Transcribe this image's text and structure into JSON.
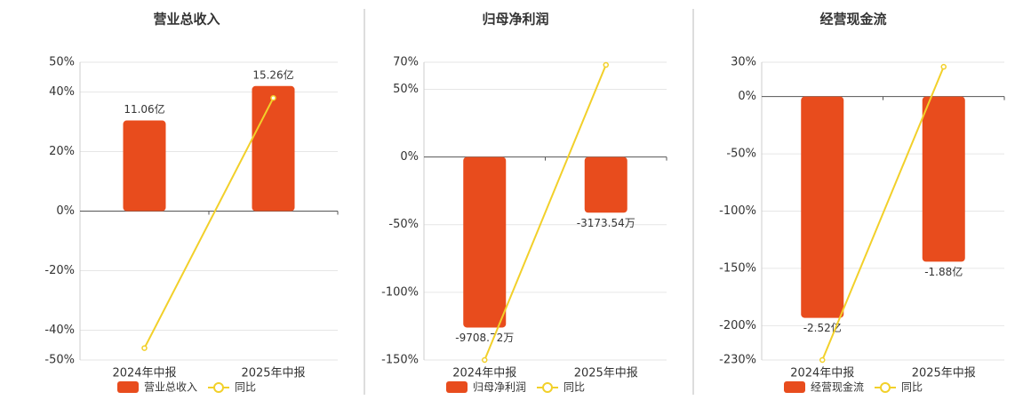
{
  "chart_data": [
    {
      "type": "bar",
      "title": "营业总收入",
      "categories": [
        "2024年中报",
        "2025年中报"
      ],
      "series": [
        {
          "name": "营业总收入",
          "type": "bar",
          "color": "#e84c1d",
          "values": [
            11.06,
            15.26
          ],
          "value_labels": [
            "11.06亿",
            "15.26亿"
          ]
        },
        {
          "name": "同比",
          "type": "line",
          "color": "#f2d02a",
          "values": [
            -46,
            38
          ]
        }
      ],
      "ylim": [
        -50,
        50
      ],
      "yticks": [
        {
          "value": 50,
          "label": "50%"
        },
        {
          "value": 40,
          "label": "40%"
        },
        {
          "value": 20,
          "label": "20%"
        },
        {
          "value": 0,
          "label": "0%"
        },
        {
          "value": -20,
          "label": "-20%"
        },
        {
          "value": -40,
          "label": "-40%"
        },
        {
          "value": -50,
          "label": "-50%"
        }
      ],
      "grid": true
    },
    {
      "type": "bar",
      "title": "归母净利润",
      "categories": [
        "2024年中报",
        "2025年中报"
      ],
      "series": [
        {
          "name": "归母净利润",
          "type": "bar",
          "color": "#e84c1d",
          "values": [
            -9708.72,
            -3173.54
          ],
          "value_labels": [
            "-9708.72万",
            "-3173.54万"
          ]
        },
        {
          "name": "同比",
          "type": "line",
          "color": "#f2d02a",
          "values": [
            -150,
            68
          ]
        }
      ],
      "ylim": [
        -150,
        70
      ],
      "yticks": [
        {
          "value": 70,
          "label": "70%"
        },
        {
          "value": 50,
          "label": "50%"
        },
        {
          "value": 0,
          "label": "0%"
        },
        {
          "value": -50,
          "label": "-50%"
        },
        {
          "value": -100,
          "label": "-100%"
        },
        {
          "value": -150,
          "label": "-150%"
        }
      ],
      "grid": true
    },
    {
      "type": "bar",
      "title": "经营现金流",
      "categories": [
        "2024年中报",
        "2025年中报"
      ],
      "series": [
        {
          "name": "经营现金流",
          "type": "bar",
          "color": "#e84c1d",
          "values": [
            -2.52,
            -1.88
          ],
          "value_labels": [
            "-2.52亿",
            "-1.88亿"
          ]
        },
        {
          "name": "同比",
          "type": "line",
          "color": "#f2d02a",
          "values": [
            -230,
            26
          ]
        }
      ],
      "ylim": [
        -230,
        30
      ],
      "yticks": [
        {
          "value": 30,
          "label": "30%"
        },
        {
          "value": 0,
          "label": "0%"
        },
        {
          "value": -50,
          "label": "-50%"
        },
        {
          "value": -100,
          "label": "-100%"
        },
        {
          "value": -150,
          "label": "-150%"
        },
        {
          "value": -200,
          "label": "-200%"
        },
        {
          "value": -230,
          "label": "-230%"
        }
      ],
      "grid": true
    }
  ]
}
